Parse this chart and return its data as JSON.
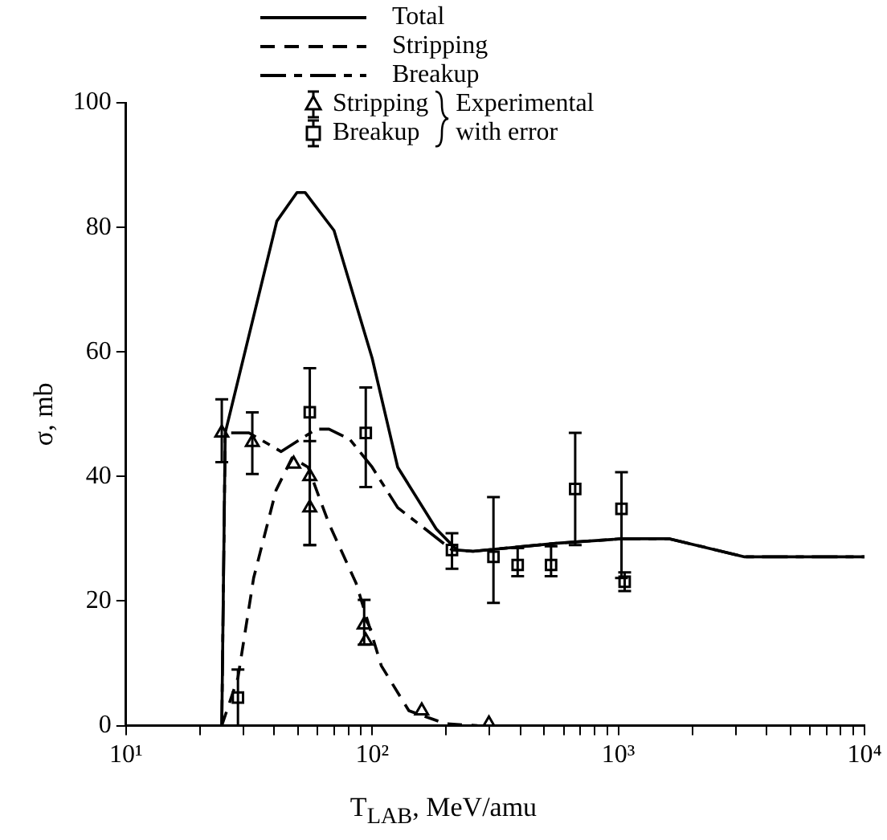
{
  "chart_data": {
    "type": "line",
    "xlabel": "T$_{LAB}$, MeV/amu",
    "ylabel": "σ, mb",
    "log": "x",
    "grid": false,
    "legend": "top",
    "xlim": [
      10,
      10000
    ],
    "xticks": [
      {
        "value": 10,
        "label": "10¹"
      },
      {
        "value": 20,
        "label": null
      },
      {
        "value": 30,
        "label": null
      },
      {
        "value": 40,
        "label": null
      },
      {
        "value": 50,
        "label": null
      },
      {
        "value": 60,
        "label": null
      },
      {
        "value": 70,
        "label": null
      },
      {
        "value": 80,
        "label": null
      },
      {
        "value": 90,
        "label": null
      },
      {
        "value": 100,
        "label": "10²"
      },
      {
        "value": 200,
        "label": null
      },
      {
        "value": 300,
        "label": null
      },
      {
        "value": 400,
        "label": null
      },
      {
        "value": 500,
        "label": null
      },
      {
        "value": 600,
        "label": null
      },
      {
        "value": 700,
        "label": null
      },
      {
        "value": 800,
        "label": null
      },
      {
        "value": 900,
        "label": null
      },
      {
        "value": 1000,
        "label": "10³"
      },
      {
        "value": 2000,
        "label": null
      },
      {
        "value": 3000,
        "label": null
      },
      {
        "value": 4000,
        "label": null
      },
      {
        "value": 5000,
        "label": null
      },
      {
        "value": 6000,
        "label": null
      },
      {
        "value": 7000,
        "label": null
      },
      {
        "value": 8000,
        "label": null
      },
      {
        "value": 9000,
        "label": null
      },
      {
        "value": 10000,
        "label": "10⁴"
      }
    ],
    "ylim": [
      0,
      100
    ],
    "yticks": [
      0,
      20,
      40,
      60,
      80,
      100
    ],
    "annotations": [
      "Experimental with error"
    ],
    "series": [
      {
        "name": "Total",
        "type": "line",
        "line_style": "solid",
        "marker": "none",
        "color": "#000000",
        "x": [
          24.5,
          25.3,
          41,
          49.5,
          53.4,
          70,
          100,
          127,
          182,
          221,
          257,
          567,
          1030,
          1614,
          3260,
          10000
        ],
        "values": [
          0,
          47,
          81,
          85.6,
          85.6,
          79.5,
          59,
          41.5,
          31.6,
          28.2,
          28,
          29.3,
          30,
          30,
          27.1,
          27.1
        ]
      },
      {
        "name": "Stripping",
        "type": "line",
        "line_style": "dashed",
        "marker": "none",
        "color": "#000000",
        "x": [
          24.5,
          28.5,
          33,
          40.7,
          47.3,
          54.9,
          66.8,
          86,
          109,
          141,
          199,
          268
        ],
        "values": [
          0,
          7.7,
          23.7,
          37.8,
          43,
          41.5,
          32.4,
          22.9,
          9.6,
          2.4,
          0.3,
          0
        ]
      },
      {
        "name": "Breakup",
        "type": "line",
        "line_style": "dashdot",
        "marker": "none",
        "color": "#000000",
        "x": [
          24.5,
          25.3,
          31.6,
          42.7,
          59.3,
          66.8,
          81,
          100,
          127,
          164,
          211,
          257,
          567,
          1030,
          1614,
          3260,
          10000
        ],
        "values": [
          0,
          47,
          47,
          44,
          47.6,
          47.6,
          46,
          41.5,
          35,
          31.6,
          28.2,
          28,
          29.3,
          30,
          30,
          27.1,
          27.1
        ]
      },
      {
        "name": "Stripping",
        "type": "scatter",
        "marker": "triangle",
        "color": "#000000",
        "x": [
          24.5,
          32.6,
          48,
          55.8,
          55.8,
          92.8,
          94.2,
          159,
          298
        ],
        "values": [
          47,
          45.5,
          42,
          40,
          35,
          16.2,
          13.6,
          2.4,
          0.3
        ],
        "errors": [
          [
            42.3,
            52.4
          ],
          [
            40.4,
            50.3
          ],
          null,
          null,
          [
            29,
            45.7
          ],
          [
            13,
            20.2
          ],
          null,
          null,
          null
        ]
      },
      {
        "name": "Breakup",
        "type": "scatter",
        "marker": "square",
        "color": "#000000",
        "x": [
          28.5,
          55.8,
          94.2,
          211,
          311,
          390,
          533,
          668,
          1030,
          1061
        ],
        "values": [
          4.5,
          50.3,
          47,
          28.2,
          27.1,
          25.8,
          25.8,
          38,
          34.8,
          23.1
        ],
        "errors": [
          [
            0,
            9
          ],
          [
            29,
            57.4
          ],
          [
            38.3,
            54.3
          ],
          [
            25.2,
            30.9
          ],
          [
            19.7,
            36.7
          ],
          [
            24,
            28.5
          ],
          [
            24,
            28.8
          ],
          [
            29,
            47
          ],
          [
            23.7,
            40.7
          ],
          [
            21.6,
            24.6
          ]
        ]
      }
    ]
  }
}
